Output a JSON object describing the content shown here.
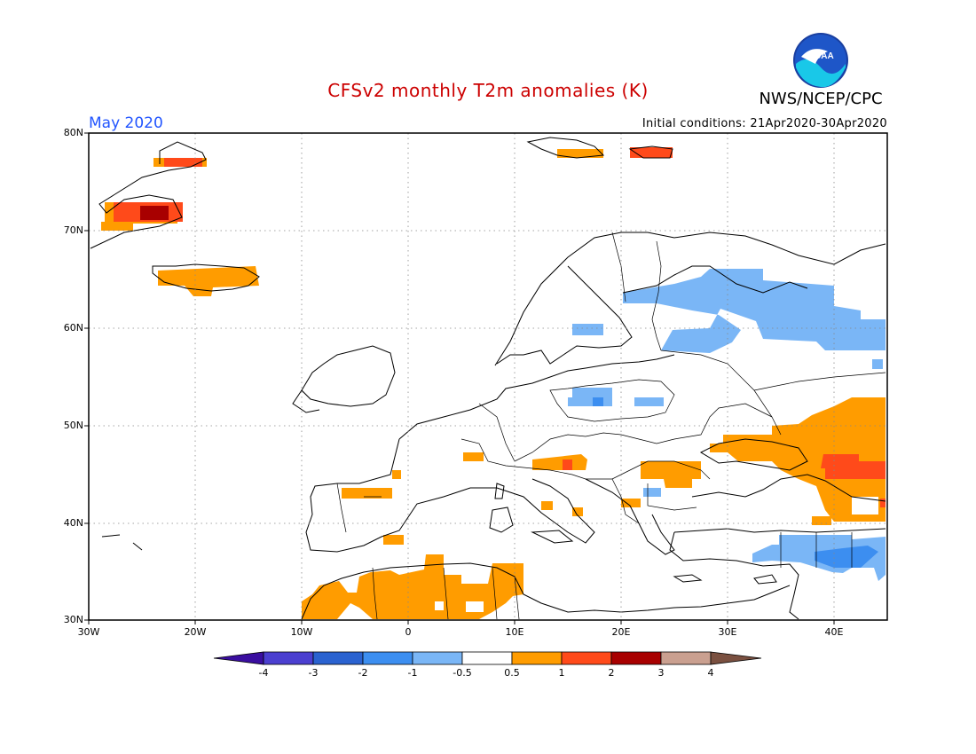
{
  "title": "CFSv2 monthly T2m anomalies (K)",
  "org": "NWS/NCEP/CPC",
  "month": "May 2020",
  "initial_conditions": "Initial conditions: 21Apr2020-30Apr2020",
  "logo": {
    "text": "NOAA",
    "icon": "noaa-logo"
  },
  "colors": {
    "title": "#cc0000",
    "month": "#2255ff",
    "text": "#000000"
  },
  "map": {
    "lat_labels": [
      "30N",
      "40N",
      "50N",
      "60N",
      "70N",
      "80N"
    ],
    "lon_labels": [
      "30W",
      "20W",
      "10W",
      "0",
      "10E",
      "20E",
      "30E",
      "40E"
    ]
  },
  "colorbar": {
    "labels": [
      "-4",
      "-3",
      "-2",
      "-1",
      "-0.5",
      "0.5",
      "1",
      "2",
      "3",
      "4"
    ],
    "colors": [
      "#3a0ea0",
      "#4b3fd0",
      "#2a62d0",
      "#3c8ef0",
      "#7ab6f6",
      "#ffffff",
      "#ff9c00",
      "#ff4a1a",
      "#a80000",
      "#caa090",
      "#7a5040"
    ]
  }
}
